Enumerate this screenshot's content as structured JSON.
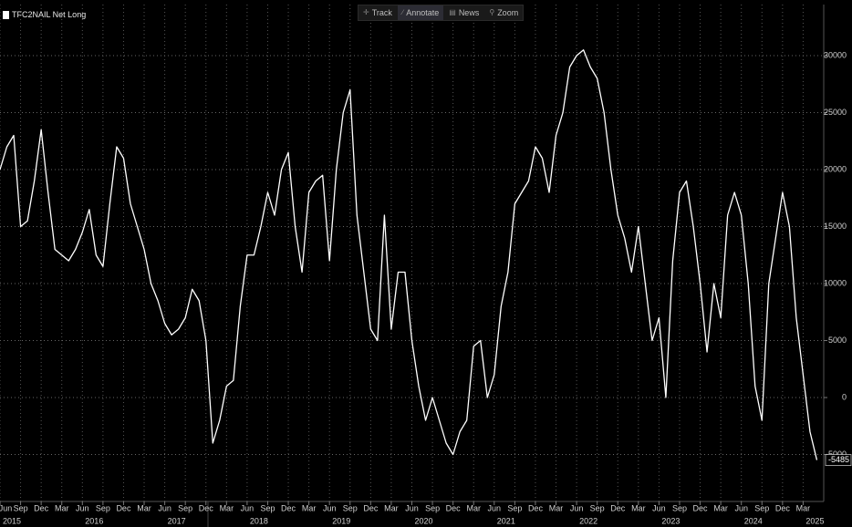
{
  "toolbar": [
    "Track",
    "Annotate",
    "News",
    "Zoom"
  ],
  "chart_data": {
    "type": "line",
    "series": [
      {
        "name": "TFC2NAIL Net Long",
        "color": "#ffffff",
        "values": [
          20000,
          22000,
          23000,
          15000,
          15500,
          19000,
          23500,
          18000,
          13000,
          12500,
          12000,
          13000,
          14500,
          16500,
          12500,
          11500,
          17000,
          22000,
          21000,
          17000,
          15000,
          13000,
          10000,
          8500,
          6500,
          5500,
          6000,
          7000,
          9500,
          8500,
          5000,
          -4000,
          -2000,
          1000,
          1500,
          8000,
          12500,
          12500,
          15000,
          18000,
          16000,
          20000,
          21500,
          15000,
          11000,
          18000,
          19000,
          19500,
          12000,
          20000,
          25000,
          27000,
          16000,
          11000,
          6000,
          5000,
          16000,
          6000,
          11000,
          11000,
          5000,
          1000,
          -2000,
          0,
          -2000,
          -4000,
          -5000,
          -3000,
          -2000,
          4500,
          5000,
          0,
          2000,
          8000,
          11000,
          17000,
          18000,
          19000,
          22000,
          21000,
          18000,
          23000,
          25000,
          29000,
          30000,
          30500,
          29000,
          28000,
          25000,
          20000,
          16000,
          14000,
          11000,
          15000,
          10000,
          5000,
          7000,
          0,
          12000,
          18000,
          19000,
          15000,
          10000,
          4000,
          10000,
          7000,
          16000,
          18000,
          16000,
          10000,
          1000,
          -2000,
          10000,
          14000,
          18000,
          15000,
          7000,
          2000,
          -3000,
          -5485
        ]
      }
    ],
    "x": [
      "2015-06",
      "2015-07",
      "2015-08",
      "2015-09",
      "2015-10",
      "2015-11",
      "2015-12",
      "2016-01",
      "2016-02",
      "2016-03",
      "2016-04",
      "2016-05",
      "2016-06",
      "2016-07",
      "2016-08",
      "2016-09",
      "2016-10",
      "2016-11",
      "2016-12",
      "2017-01",
      "2017-02",
      "2017-03",
      "2017-04",
      "2017-05",
      "2017-06",
      "2017-07",
      "2017-08",
      "2017-09",
      "2017-10",
      "2017-11",
      "2017-12",
      "2018-01",
      "2018-02",
      "2018-03",
      "2018-04",
      "2018-05",
      "2018-06",
      "2018-07",
      "2018-08",
      "2018-09",
      "2018-10",
      "2018-11",
      "2018-12",
      "2019-01",
      "2019-02",
      "2019-03",
      "2019-04",
      "2019-05",
      "2019-06",
      "2019-07",
      "2019-08",
      "2019-09",
      "2019-10",
      "2019-11",
      "2019-12",
      "2020-01",
      "2020-02",
      "2020-03",
      "2020-04",
      "2020-05",
      "2020-06",
      "2020-07",
      "2020-08",
      "2020-09",
      "2020-10",
      "2020-11",
      "2020-12",
      "2021-01",
      "2021-02",
      "2021-03",
      "2021-04",
      "2021-05",
      "2021-06",
      "2021-07",
      "2021-08",
      "2021-09",
      "2021-10",
      "2021-11",
      "2021-12",
      "2022-01",
      "2022-02",
      "2022-03",
      "2022-04",
      "2022-05",
      "2022-06",
      "2022-07",
      "2022-08",
      "2022-09",
      "2022-10",
      "2022-11",
      "2022-12",
      "2023-01",
      "2023-02",
      "2023-03",
      "2023-04",
      "2023-05",
      "2023-06",
      "2023-07",
      "2023-08",
      "2023-09",
      "2023-10",
      "2023-11",
      "2023-12",
      "2024-01",
      "2024-02",
      "2024-03",
      "2024-04",
      "2024-05",
      "2024-06",
      "2024-07",
      "2024-08",
      "2024-09",
      "2024-10",
      "2024-11",
      "2024-12",
      "2025-01",
      "2025-02",
      "2025-03",
      "2025-04",
      "2025-05"
    ],
    "xlim": [
      "2015-06",
      "2025-06"
    ],
    "xticks": [
      {
        "value": "2015-06",
        "label": "Jun"
      },
      {
        "value": "2015-09",
        "label": "Sep"
      },
      {
        "value": "2015-12",
        "label": "Dec"
      },
      {
        "value": "2016-03",
        "label": "Mar"
      },
      {
        "value": "2016-06",
        "label": "Jun"
      },
      {
        "value": "2016-09",
        "label": "Sep"
      },
      {
        "value": "2016-12",
        "label": "Dec"
      },
      {
        "value": "2017-03",
        "label": "Mar"
      },
      {
        "value": "2017-06",
        "label": "Jun"
      },
      {
        "value": "2017-09",
        "label": "Sep"
      },
      {
        "value": "2017-12",
        "label": "Dec"
      },
      {
        "value": "2018-03",
        "label": "Mar"
      },
      {
        "value": "2018-06",
        "label": "Jun"
      },
      {
        "value": "2018-09",
        "label": "Sep"
      },
      {
        "value": "2018-12",
        "label": "Dec"
      },
      {
        "value": "2019-03",
        "label": "Mar"
      },
      {
        "value": "2019-06",
        "label": "Jun"
      },
      {
        "value": "2019-09",
        "label": "Sep"
      },
      {
        "value": "2019-12",
        "label": "Dec"
      },
      {
        "value": "2020-03",
        "label": "Mar"
      },
      {
        "value": "2020-06",
        "label": "Jun"
      },
      {
        "value": "2020-09",
        "label": "Sep"
      },
      {
        "value": "2020-12",
        "label": "Dec"
      },
      {
        "value": "2021-03",
        "label": "Mar"
      },
      {
        "value": "2021-06",
        "label": "Jun"
      },
      {
        "value": "2021-09",
        "label": "Sep"
      },
      {
        "value": "2021-12",
        "label": "Dec"
      },
      {
        "value": "2022-03",
        "label": "Mar"
      },
      {
        "value": "2022-06",
        "label": "Jun"
      },
      {
        "value": "2022-09",
        "label": "Sep"
      },
      {
        "value": "2022-12",
        "label": "Dec"
      },
      {
        "value": "2023-03",
        "label": "Mar"
      },
      {
        "value": "2023-06",
        "label": "Jun"
      },
      {
        "value": "2023-09",
        "label": "Sep"
      },
      {
        "value": "2023-12",
        "label": "Dec"
      },
      {
        "value": "2024-03",
        "label": "Mar"
      },
      {
        "value": "2024-06",
        "label": "Jun"
      },
      {
        "value": "2024-09",
        "label": "Sep"
      },
      {
        "value": "2024-12",
        "label": "Dec"
      },
      {
        "value": "2025-03",
        "label": "Mar"
      }
    ],
    "year_labels": [
      {
        "value": "2015-06",
        "label": "2015"
      },
      {
        "value": "2016-06",
        "label": "2016"
      },
      {
        "value": "2017-06",
        "label": "2017"
      },
      {
        "value": "2018-06",
        "label": "2018"
      },
      {
        "value": "2019-06",
        "label": "2019"
      },
      {
        "value": "2020-06",
        "label": "2020"
      },
      {
        "value": "2021-06",
        "label": "2021"
      },
      {
        "value": "2022-06",
        "label": "2022"
      },
      {
        "value": "2023-06",
        "label": "2023"
      },
      {
        "value": "2024-06",
        "label": "2024"
      },
      {
        "value": "2025-03",
        "label": "2025"
      }
    ],
    "ylim": [
      -9120,
      34480
    ],
    "yticks": [
      -5000,
      0,
      5000,
      10000,
      15000,
      20000,
      25000,
      30000
    ],
    "grid": true
  }
}
